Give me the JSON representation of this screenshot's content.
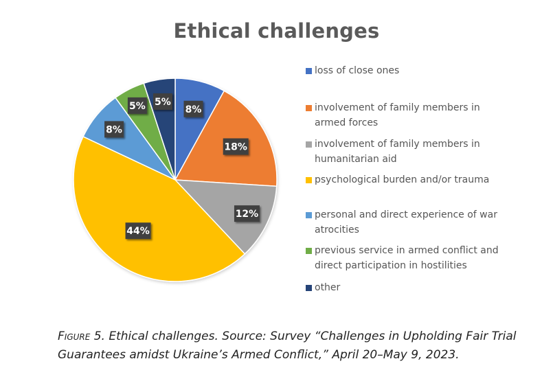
{
  "chart_data": {
    "type": "pie",
    "title": "Ethical challenges",
    "categories": [
      "loss of close ones",
      "involvement of family members in armed forces",
      "involvement of family members in humanitarian aid",
      "psychological burden and/or trauma",
      "personal and direct experience of war atrocities",
      "previous service in armed conflict and direct participation in hostilities",
      "other"
    ],
    "values": [
      8,
      18,
      12,
      44,
      8,
      5,
      5
    ],
    "data_labels": [
      "8%",
      "18%",
      "12%",
      "44%",
      "8%",
      "5%",
      "5%"
    ],
    "colors": [
      "#4472c4",
      "#ed7d31",
      "#a5a5a5",
      "#ffc000",
      "#5b9bd5",
      "#70ad47",
      "#264478"
    ],
    "legend_position": "right"
  },
  "legend_lines": [
    [
      "loss of close ones"
    ],
    [
      "involvement of family members in",
      "armed forces"
    ],
    [
      "involvement of family members in",
      "humanitarian aid"
    ],
    [
      "psychological burden and/or trauma"
    ],
    [
      "personal and direct experience of war",
      "atrocities"
    ],
    [
      "previous service in armed conflict and",
      "direct participation in hostilities"
    ],
    [
      "other"
    ]
  ],
  "caption": {
    "label": "Figure 5.",
    "text": "Ethical challenges. Source: Survey “Challenges in Upholding Fair Trial Guarantees amidst Ukraine’s Armed Conflict,” April 20–May 9, 2023."
  }
}
